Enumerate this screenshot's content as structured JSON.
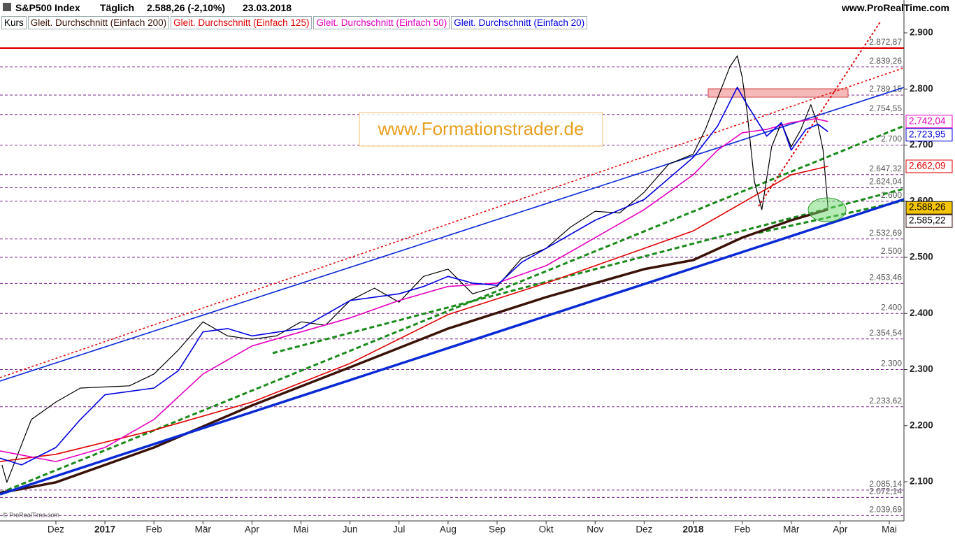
{
  "chart_data": {
    "type": "line",
    "title": "S&P500 Index",
    "period": "Täglich",
    "quote": "2.588,26 (-2,10%)",
    "date": "23.03.2018",
    "source": "www.ProRealTime.com",
    "watermark": "www.Formationstrader.de",
    "copyright": "© ProRealTime.com",
    "xlim": [
      -1.14,
      17.3
    ],
    "ylim": [
      2030.2,
      2958.6
    ],
    "xticks": [
      {
        "value": 0,
        "label": "Dez"
      },
      {
        "value": 1,
        "label": "2017"
      },
      {
        "value": 2,
        "label": "Feb"
      },
      {
        "value": 3,
        "label": "Mär"
      },
      {
        "value": 4,
        "label": "Apr"
      },
      {
        "value": 5,
        "label": "Mai"
      },
      {
        "value": 6,
        "label": "Jun"
      },
      {
        "value": 7,
        "label": "Jul"
      },
      {
        "value": 8,
        "label": "Aug"
      },
      {
        "value": 9,
        "label": "Sep"
      },
      {
        "value": 10,
        "label": "Okt"
      },
      {
        "value": 11,
        "label": "Nov"
      },
      {
        "value": 12,
        "label": "Dez"
      },
      {
        "value": 13,
        "label": "2018"
      },
      {
        "value": 14,
        "label": "Feb"
      },
      {
        "value": 15,
        "label": "Mär"
      },
      {
        "value": 16,
        "label": "Apr"
      },
      {
        "value": 17,
        "label": "Mai"
      }
    ],
    "yticks": [
      {
        "value": 2100,
        "label": "2.100"
      },
      {
        "value": 2200,
        "label": "2.200"
      },
      {
        "value": 2300,
        "label": "2.300"
      },
      {
        "value": 2400,
        "label": "2.400"
      },
      {
        "value": 2500,
        "label": "2.500"
      },
      {
        "value": 2600,
        "label": "2.600"
      },
      {
        "value": 2700,
        "label": "2.700"
      },
      {
        "value": 2800,
        "label": "2.800"
      },
      {
        "value": 2900,
        "label": "2.900"
      }
    ],
    "levels": [
      {
        "value": 2872.87,
        "label": "2.872,87",
        "color": "#e00000",
        "dashed": false
      },
      {
        "value": 2839.26,
        "label": "2.839,26",
        "color": "#7a2a8a",
        "dashed": true
      },
      {
        "value": 2789.15,
        "label": "2.789,15",
        "color": "#7a2a8a",
        "dashed": true
      },
      {
        "value": 2754.55,
        "label": "2.754,55",
        "color": "#7a2a8a",
        "dashed": true
      },
      {
        "value": 2700,
        "label": "2.700",
        "color": "#7a2a8a",
        "dashed": true
      },
      {
        "value": 2647.32,
        "label": "2.647,32",
        "color": "#7a2a8a",
        "dashed": true
      },
      {
        "value": 2624.04,
        "label": "2.624,04",
        "color": "#7a2a8a",
        "dashed": true
      },
      {
        "value": 2600,
        "label": "2.600",
        "color": "#7a2a8a",
        "dashed": true
      },
      {
        "value": 2532.69,
        "label": "2.532,69",
        "color": "#7a2a8a",
        "dashed": true
      },
      {
        "value": 2500,
        "label": "2.500",
        "color": "#7a2a8a",
        "dashed": true
      },
      {
        "value": 2453.46,
        "label": "2.453,46",
        "color": "#7a2a8a",
        "dashed": true
      },
      {
        "value": 2400,
        "label": "2.400",
        "color": "#7a2a8a",
        "dashed": true
      },
      {
        "value": 2354.54,
        "label": "2.354,54",
        "color": "#7a2a8a",
        "dashed": true
      },
      {
        "value": 2300,
        "label": "2.300",
        "color": "#7a2a8a",
        "dashed": true
      },
      {
        "value": 2233.62,
        "label": "2.233,62",
        "color": "#7a2a8a",
        "dashed": true
      },
      {
        "value": 2085.14,
        "label": "2.085,14",
        "color": "#7a2a8a",
        "dashed": true
      },
      {
        "value": 2072.14,
        "label": "2.072,14",
        "color": "#7a2a8a",
        "dashed": true
      },
      {
        "value": 2039.69,
        "label": "2.039,69",
        "color": "#7a2a8a",
        "dashed": true
      }
    ],
    "series": [
      {
        "name": "Kurs",
        "color": "#000000",
        "width": 1.2,
        "tag_bg": "#f5c400",
        "tag_text": "#000000",
        "last_label": "2.588,26",
        "x": [
          -1.1,
          -1,
          -0.5,
          0,
          0.5,
          1,
          1.5,
          2,
          2.5,
          3,
          3.5,
          4,
          4.5,
          5,
          5.5,
          6,
          6.5,
          7,
          7.5,
          8,
          8.5,
          9,
          9.5,
          10,
          10.5,
          11,
          11.5,
          12,
          12.5,
          13,
          13.25,
          13.5,
          13.75,
          13.9,
          14,
          14.1,
          14.25,
          14.4,
          14.6,
          14.8,
          15,
          15.2,
          15.4,
          15.55,
          15.65,
          15.75
        ],
        "values": [
          2130,
          2099,
          2211,
          2242,
          2267,
          2269,
          2271,
          2292,
          2335,
          2385,
          2360,
          2354,
          2360,
          2385,
          2379,
          2423,
          2445,
          2420,
          2466,
          2479,
          2435,
          2448,
          2498,
          2516,
          2554,
          2582,
          2579,
          2616,
          2666,
          2684,
          2728,
          2784,
          2840,
          2859,
          2821,
          2759,
          2635,
          2585,
          2697,
          2740,
          2697,
          2728,
          2772,
          2734,
          2691,
          2588.26
        ]
      },
      {
        "name": "Gleit. Durchschnitt (Einfach 200)",
        "color": "#3a1208",
        "width": 3.5,
        "tag_bg": "#ffffff",
        "tag_text": "#000000",
        "last_label": "2.585,22",
        "x": [
          -1.14,
          0,
          2,
          4,
          6,
          8,
          10,
          12,
          13,
          14,
          15,
          15.75
        ],
        "values": [
          2080,
          2099,
          2161,
          2236,
          2304,
          2373,
          2429,
          2479,
          2495,
          2535,
          2566,
          2585.22
        ]
      },
      {
        "name": "Gleit. Durchschnitt (Einfach 125)",
        "color": "#e00000",
        "width": 1.6,
        "tag_bg": "#ffffff",
        "tag_text": "#e00000",
        "last_label": "2.662,09",
        "x": [
          -1.14,
          0,
          2,
          4,
          6,
          8,
          10,
          12,
          13,
          14,
          15,
          15.75
        ],
        "values": [
          2136,
          2149,
          2192,
          2242,
          2311,
          2398,
          2454,
          2516,
          2547,
          2597,
          2647,
          2662.09
        ]
      },
      {
        "name": "Gleit. Durchschnitt (Einfach 50)",
        "color": "#e600c0",
        "width": 1.6,
        "tag_bg": "#ffffff",
        "tag_text": "#e600c0",
        "last_label": "2.742,04",
        "x": [
          -1.14,
          0,
          1,
          2,
          3,
          4,
          5,
          6,
          7,
          8,
          9,
          10,
          11,
          12,
          13,
          13.5,
          14,
          14.5,
          15,
          15.5,
          15.75
        ],
        "values": [
          2155,
          2136,
          2161,
          2211,
          2292,
          2342,
          2367,
          2392,
          2423,
          2448,
          2454,
          2485,
          2535,
          2585,
          2647,
          2691,
          2722,
          2728,
          2740,
          2747,
          2742.04
        ]
      },
      {
        "name": "Gleit. Durchschnitt (Einfach 20)",
        "color": "#0000e0",
        "width": 1.6,
        "tag_bg": "#ffffff",
        "tag_text": "#0000e0",
        "last_label": "2.723,95",
        "x": [
          -1.14,
          -0.7,
          0,
          0.5,
          1,
          2,
          2.5,
          3,
          3.5,
          4,
          5,
          6,
          7,
          7.5,
          8,
          8.5,
          9,
          9.5,
          10,
          11,
          12,
          13,
          13.5,
          13.9,
          14.1,
          14.5,
          14.8,
          15,
          15.3,
          15.55,
          15.75
        ],
        "values": [
          2142,
          2130,
          2161,
          2211,
          2255,
          2267,
          2298,
          2367,
          2373,
          2360,
          2373,
          2423,
          2435,
          2448,
          2466,
          2454,
          2450,
          2491,
          2516,
          2566,
          2603,
          2678,
          2734,
          2803,
          2772,
          2716,
          2740,
          2691,
          2728,
          2737,
          2723.95
        ]
      }
    ]
  }
}
